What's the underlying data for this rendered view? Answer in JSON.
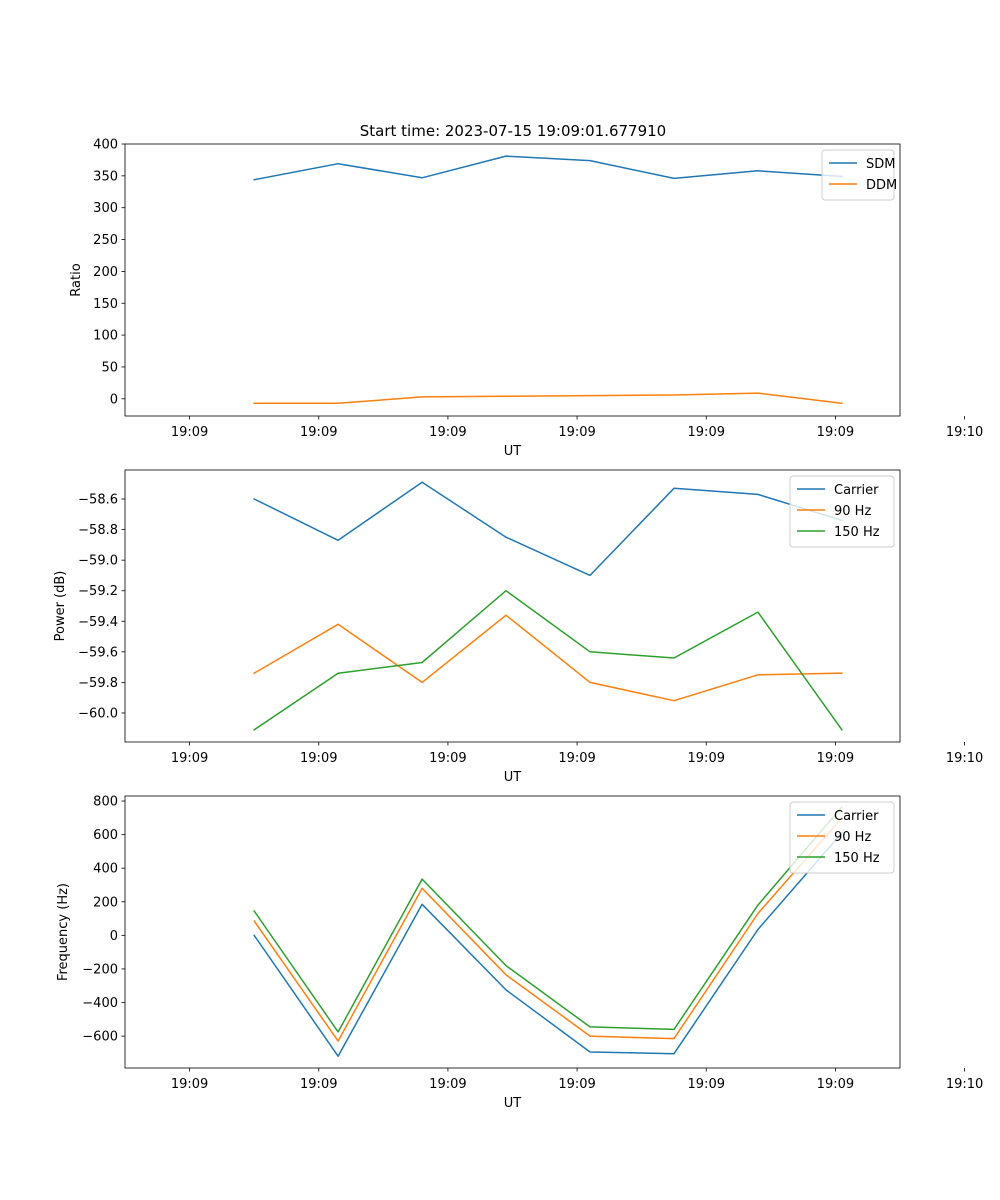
{
  "figure_title": "Start time: 2023-07-15 19:09:01.677910",
  "colors": {
    "blue": "#1f77b4",
    "orange": "#ff7f0e",
    "green": "#2ca02c",
    "frame": "#000000",
    "legend_edge": "#cccccc"
  },
  "chart_data": [
    {
      "type": "line",
      "title": "Start time: 2023-07-15 19:09:01.677910",
      "xlabel": "UT",
      "ylabel": "Ratio",
      "xlim": [
        -0.5,
        5.5
      ],
      "ylim": [
        -27,
        400
      ],
      "x_ticks": [
        0,
        1,
        2,
        3,
        4,
        5,
        6
      ],
      "x_tick_labels": [
        "19:09",
        "19:09",
        "19:09",
        "19:09",
        "19:09",
        "19:09",
        "19:10"
      ],
      "y_ticks": [
        0,
        50,
        100,
        150,
        200,
        250,
        300,
        350,
        400
      ],
      "y_tick_labels": [
        "0",
        "50",
        "100",
        "150",
        "200",
        "250",
        "300",
        "350",
        "400"
      ],
      "x": [
        0.5,
        1.15,
        1.8,
        2.45,
        3.1,
        3.75,
        4.4,
        5.05
      ],
      "legend_position": "top-right",
      "series": [
        {
          "name": "SDM",
          "color": "#1f77b4",
          "values": [
            344,
            369,
            347,
            381,
            374,
            346,
            358,
            349
          ]
        },
        {
          "name": "DDM",
          "color": "#ff7f0e",
          "values": [
            -7,
            -7,
            3,
            4,
            5,
            6,
            9,
            -7
          ]
        }
      ]
    },
    {
      "type": "line",
      "title": "",
      "xlabel": "UT",
      "ylabel": "Power (dB)",
      "xlim": [
        -0.5,
        5.5
      ],
      "ylim": [
        -60.19,
        -58.41
      ],
      "x_ticks": [
        0,
        1,
        2,
        3,
        4,
        5,
        6
      ],
      "x_tick_labels": [
        "19:09",
        "19:09",
        "19:09",
        "19:09",
        "19:09",
        "19:09",
        "19:10"
      ],
      "y_ticks": [
        -60.0,
        -59.8,
        -59.6,
        -59.4,
        -59.2,
        -59.0,
        -58.8,
        -58.6
      ],
      "y_tick_labels": [
        "−60.0",
        "−59.8",
        "−59.6",
        "−59.4",
        "−59.2",
        "−59.0",
        "−58.8",
        "−58.6"
      ],
      "x": [
        0.5,
        1.15,
        1.8,
        2.45,
        3.1,
        3.75,
        4.4,
        5.05
      ],
      "legend_position": "top-right",
      "series": [
        {
          "name": "Carrier",
          "color": "#1f77b4",
          "values": [
            -58.6,
            -58.87,
            -58.49,
            -58.85,
            -59.1,
            -58.53,
            -58.57,
            -58.74
          ]
        },
        {
          "name": "90 Hz",
          "color": "#ff7f0e",
          "values": [
            -59.74,
            -59.42,
            -59.8,
            -59.36,
            -59.8,
            -59.92,
            -59.75,
            -59.74
          ]
        },
        {
          "name": "150 Hz",
          "color": "#2ca02c",
          "values": [
            -60.11,
            -59.74,
            -59.67,
            -59.2,
            -59.6,
            -59.64,
            -59.34,
            -60.11
          ]
        }
      ]
    },
    {
      "type": "line",
      "title": "",
      "xlabel": "UT",
      "ylabel": "Frequency (Hz)",
      "xlim": [
        -0.5,
        5.5
      ],
      "ylim": [
        -790,
        830
      ],
      "x_ticks": [
        0,
        1,
        2,
        3,
        4,
        5,
        6
      ],
      "x_tick_labels": [
        "19:09",
        "19:09",
        "19:09",
        "19:09",
        "19:09",
        "19:09",
        "19:10"
      ],
      "y_ticks": [
        -600,
        -400,
        -200,
        0,
        200,
        400,
        600,
        800
      ],
      "y_tick_labels": [
        "−600",
        "−400",
        "−200",
        "0",
        "200",
        "400",
        "600",
        "800"
      ],
      "x": [
        0.5,
        1.15,
        1.8,
        2.45,
        3.1,
        3.75,
        4.4,
        5.05
      ],
      "legend_position": "top-right",
      "series": [
        {
          "name": "Carrier",
          "color": "#1f77b4",
          "values": [
            0,
            -720,
            185,
            -325,
            -695,
            -705,
            35,
            610
          ]
        },
        {
          "name": "90 Hz",
          "color": "#ff7f0e",
          "values": [
            85,
            -630,
            280,
            -235,
            -600,
            -615,
            130,
            700
          ]
        },
        {
          "name": "150 Hz",
          "color": "#2ca02c",
          "values": [
            145,
            -575,
            335,
            -180,
            -545,
            -560,
            180,
            765
          ]
        }
      ]
    }
  ]
}
